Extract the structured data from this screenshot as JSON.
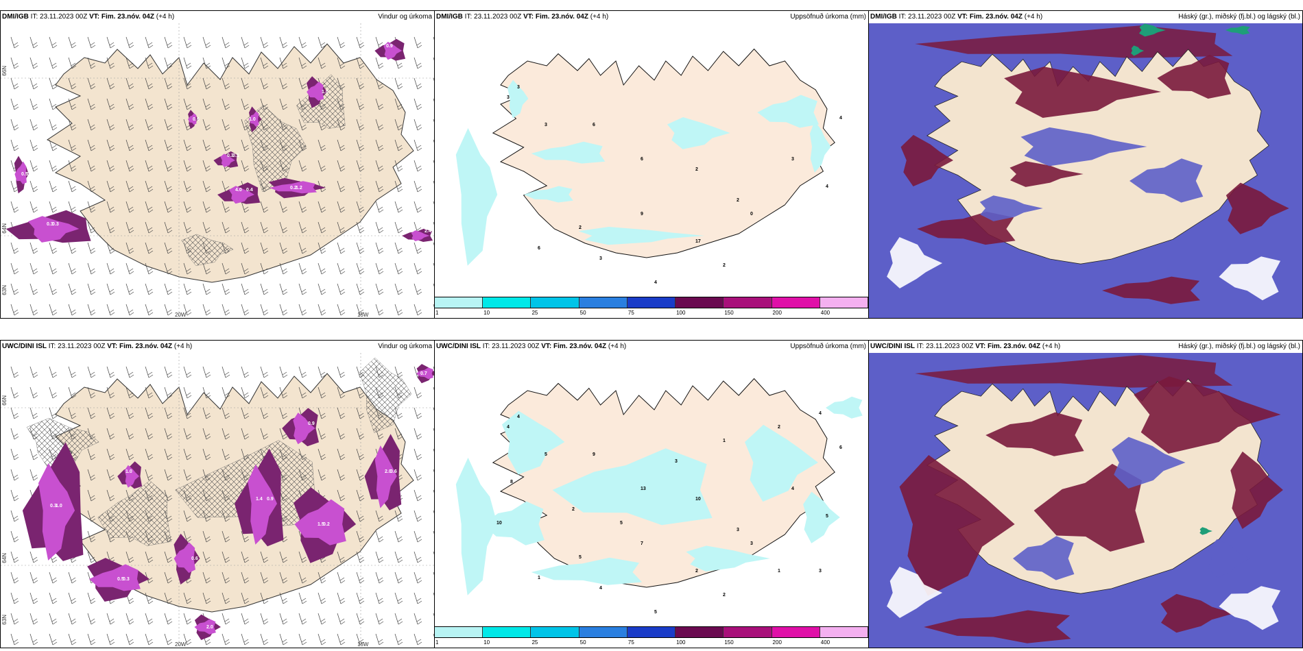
{
  "panels": [
    {
      "model": "DMI/IGB",
      "it_label": "IT:",
      "it_value": "23.11.2023 00Z",
      "vt_label": "VT:",
      "vt_value": "Fim. 23.nóv. 04Z",
      "lead": "(+4 h)",
      "title": "Vindur og úrkoma"
    },
    {
      "model": "DMI/IGB",
      "it_label": "IT:",
      "it_value": "23.11.2023 00Z",
      "vt_label": "VT:",
      "vt_value": "Fim. 23.nóv. 04Z",
      "lead": "(+4 h)",
      "title": "Uppsöfnuð úrkoma (mm)"
    },
    {
      "model": "DMI/IGB",
      "it_label": "IT:",
      "it_value": "23.11.2023 00Z",
      "vt_label": "VT:",
      "vt_value": "Fim. 23.nóv. 04Z",
      "lead": "(+4 h)",
      "title": "Háský (gr.), miðský (fj.bl.) og lágský (bl.)"
    },
    {
      "model": "UWC/DINI ISL",
      "it_label": "IT:",
      "it_value": "23.11.2023 00Z",
      "vt_label": "VT:",
      "vt_value": "Fim. 23.nóv. 04Z",
      "lead": "(+4 h)",
      "title": "Vindur og úrkoma"
    },
    {
      "model": "UWC/DINI ISL",
      "it_label": "IT:",
      "it_value": "23.11.2023 00Z",
      "vt_label": "VT:",
      "vt_value": "Fim. 23.nóv. 04Z",
      "lead": "(+4 h)",
      "title": "Uppsöfnuð úrkoma (mm)"
    },
    {
      "model": "UWC/DINI ISL",
      "it_label": "IT:",
      "it_value": "23.11.2023 00Z",
      "vt_label": "VT:",
      "vt_value": "Fim. 23.nóv. 04Z",
      "lead": "(+4 h)",
      "title": "Háský (gr.), miðský (fj.bl.) og lágský (bl.)"
    }
  ],
  "axes": {
    "lat_labels": [
      "66N",
      "64N",
      "63N"
    ],
    "lon_labels": [
      "20W",
      "15W"
    ]
  },
  "colorbar": {
    "ticks": [
      "1",
      "10",
      "25",
      "50",
      "75",
      "100",
      "150",
      "200",
      "400"
    ],
    "colors": [
      "#b8f4f4",
      "#00e8e8",
      "#00c4e8",
      "#2a7fe0",
      "#1a3cc8",
      "#6a0a50",
      "#a8107a",
      "#e010a8",
      "#f4b0f0"
    ]
  },
  "wind_rain_values": {
    "top": [
      "0.3",
      "0.5",
      "0.4",
      "0.2",
      "0.3",
      "1.0",
      "0.9",
      "0.6",
      "2.4",
      "1.0",
      "0.3",
      "0.5",
      "4.0",
      "1.2",
      "0.1"
    ],
    "bottom": [
      "0.3",
      "0.5",
      "0.9",
      "1.5",
      "2.0",
      "0.6",
      "1.0",
      "2.0",
      "0.9",
      "0.7",
      "1.0",
      "0.3",
      "1.4",
      "0.2",
      "0.6"
    ]
  },
  "precip_values": {
    "top": [
      "3",
      "3",
      "3",
      "6",
      "6",
      "2",
      "2",
      "3",
      "4",
      "4",
      "2",
      "9",
      "17",
      "0",
      "6",
      "3",
      "4",
      "2"
    ],
    "bottom": [
      "4",
      "4",
      "5",
      "9",
      "13",
      "10",
      "3",
      "4",
      "5",
      "6",
      "5",
      "7",
      "2",
      "3",
      "1",
      "4",
      "5",
      "2",
      "1",
      "3",
      "10",
      "8",
      "2",
      "5",
      "3",
      "1",
      "2",
      "4"
    ]
  },
  "colors": {
    "land": "#f3e4cf",
    "land_precip": "#fbeadb",
    "sea": "#ffffff",
    "precip_light": "#bff6f6",
    "magenta": "#c850d0",
    "dark_magenta": "#7a2470",
    "cloud_low": "#5d5fc8",
    "cloud_mid": "#7a1a3c",
    "cloud_high": "#1e9e78"
  }
}
